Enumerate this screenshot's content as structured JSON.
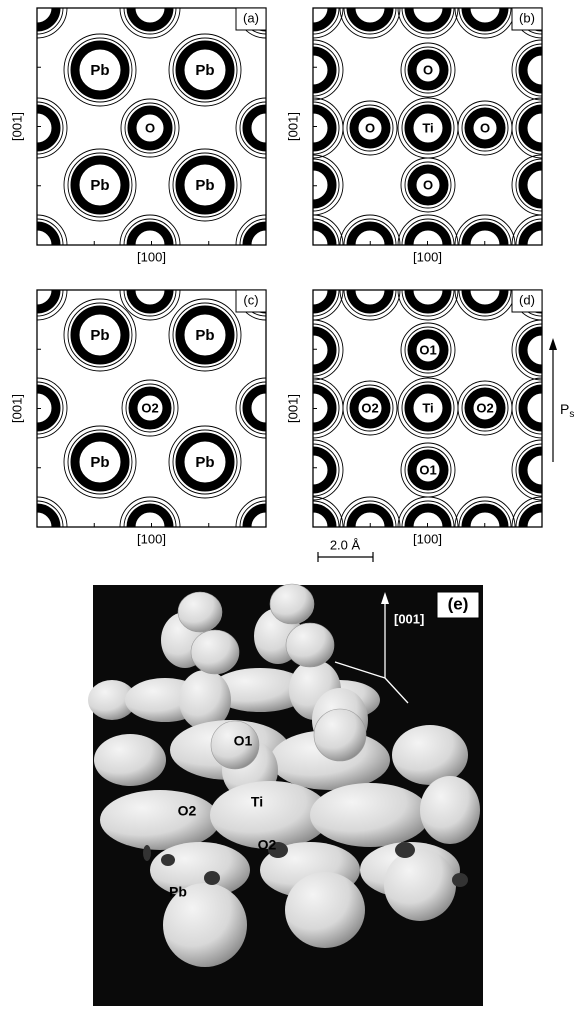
{
  "panels": [
    {
      "label": "(a)",
      "x_axis": "[100]",
      "y_axis": "[001]",
      "atoms": [
        "Pb",
        "Pb",
        "O",
        "Pb",
        "Pb"
      ]
    },
    {
      "label": "(b)",
      "x_axis": "[100]",
      "y_axis": "[001]",
      "atoms": [
        "O",
        "O",
        "Ti",
        "O",
        "O"
      ]
    },
    {
      "label": "(c)",
      "x_axis": "[100]",
      "y_axis": "[001]",
      "atoms": [
        "Pb",
        "Pb",
        "O2",
        "Pb",
        "Pb"
      ]
    },
    {
      "label": "(d)",
      "x_axis": "[100]",
      "y_axis": "[001]",
      "atoms": [
        "O1",
        "O2",
        "Ti",
        "O2",
        "O1"
      ]
    }
  ],
  "scale_bar": "2.0 Å",
  "polarization": {
    "symbol": "P",
    "subscript": "s"
  },
  "panel_e": {
    "label": "(e)",
    "axis": "[001]",
    "atoms": [
      "O1",
      "Ti",
      "O2",
      "O2",
      "Pb"
    ]
  }
}
